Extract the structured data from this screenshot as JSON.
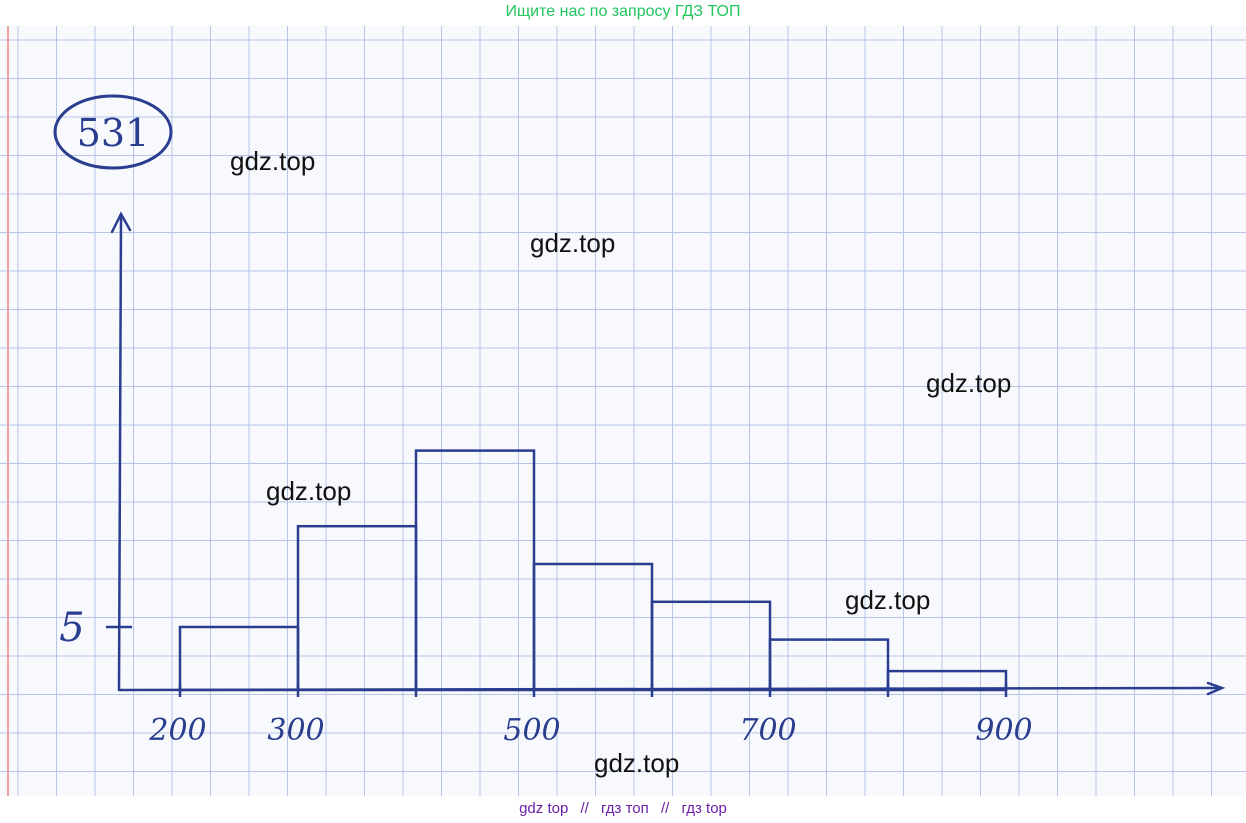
{
  "banner": {
    "top_text": "Ищите нас по запросу ГДЗ ТОП",
    "bottom_parts": [
      "gdz top",
      "//",
      "гдз топ",
      "//",
      "гдз top"
    ]
  },
  "problem_number": "531",
  "watermarks": [
    "gdz.top",
    "gdz.top",
    "gdz.top",
    "gdz.top",
    "gdz.top",
    "gdz.top"
  ],
  "colors": {
    "ink": "#2a3d8f",
    "grid": "#b7c6e6",
    "margin_line": "#f0a0a0",
    "banner_top": "#22c55e",
    "banner_bottom": "#6b21a8"
  },
  "chart_data": {
    "type": "bar",
    "subtype": "histogram",
    "bin_edges": [
      200,
      300,
      400,
      500,
      600,
      700,
      800,
      900
    ],
    "values": [
      5,
      13,
      19,
      10,
      7,
      4,
      1.5
    ],
    "x_tick_labels": [
      {
        "value": 200,
        "label": "200"
      },
      {
        "value": 300,
        "label": "300"
      },
      {
        "value": 500,
        "label": "500"
      },
      {
        "value": 700,
        "label": "700"
      },
      {
        "value": 900,
        "label": "900"
      }
    ],
    "x_ticks_unlabeled": [
      400,
      600,
      800
    ],
    "y_tick_labels": [
      {
        "value": 5,
        "label": "5"
      }
    ],
    "xlim": [
      150,
      1080
    ],
    "ylim": [
      0,
      25
    ],
    "grid": true
  }
}
